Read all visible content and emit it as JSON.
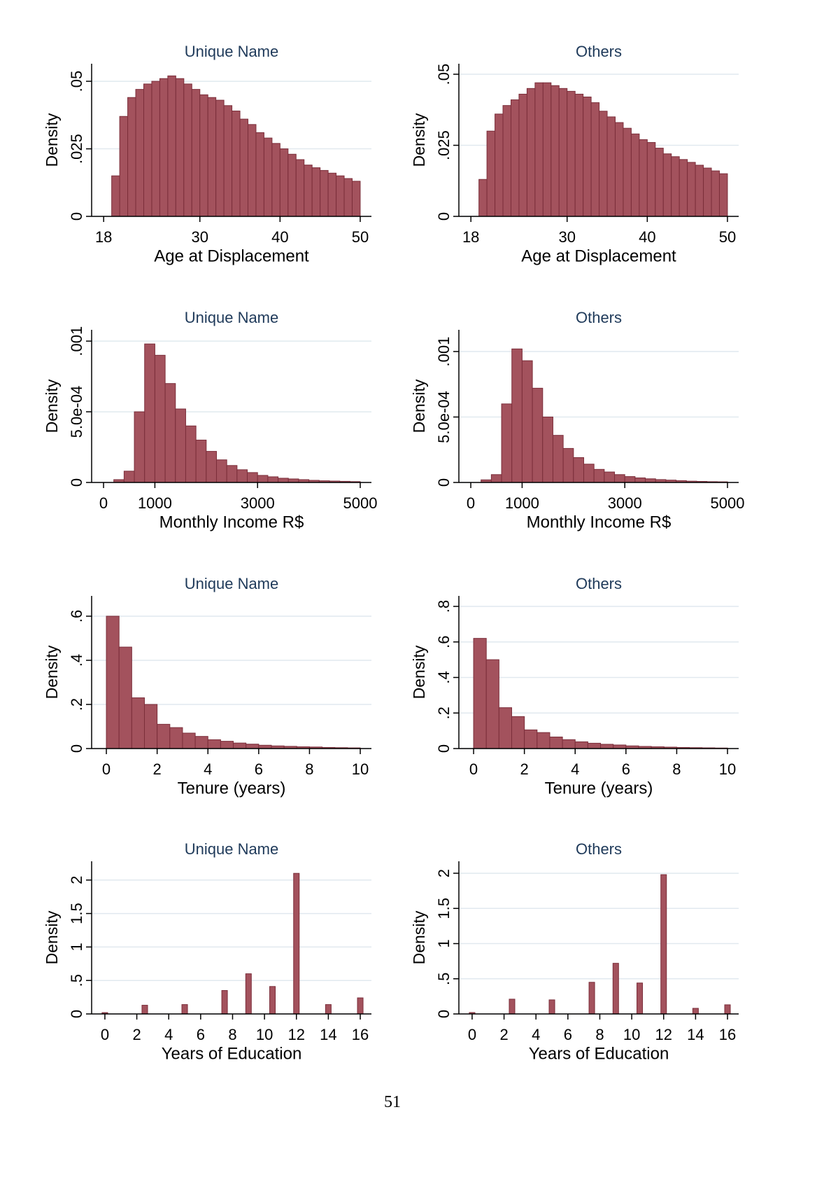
{
  "chart_data": [
    {
      "type": "histogram",
      "title": "Unique Name",
      "xlabel": "Age at Displacement",
      "ylabel": "Density",
      "color": "#a3525d",
      "bins": [
        19,
        20,
        21,
        22,
        23,
        24,
        25,
        26,
        27,
        28,
        29,
        30,
        31,
        32,
        33,
        34,
        35,
        36,
        37,
        38,
        39,
        40,
        41,
        42,
        43,
        44,
        45,
        46,
        47,
        48,
        49,
        50
      ],
      "values": [
        0.015,
        0.037,
        0.044,
        0.047,
        0.049,
        0.05,
        0.051,
        0.052,
        0.051,
        0.049,
        0.047,
        0.045,
        0.044,
        0.043,
        0.041,
        0.039,
        0.036,
        0.034,
        0.031,
        0.029,
        0.027,
        0.025,
        0.023,
        0.021,
        0.019,
        0.018,
        0.017,
        0.016,
        0.015,
        0.014,
        0.013
      ],
      "xlim": [
        16.5,
        51.4
      ],
      "xticks": [
        18,
        30,
        40,
        50
      ],
      "ylim": [
        0,
        0.0565
      ],
      "yticks": [
        0,
        {
          "value": 0.025,
          "label": ".025"
        },
        {
          "value": 0.05,
          "label": ".05"
        }
      ],
      "grid": true
    },
    {
      "type": "histogram",
      "title": "Others",
      "xlabel": "Age at Displacement",
      "ylabel": "Density",
      "color": "#a3525d",
      "bins": [
        19,
        20,
        21,
        22,
        23,
        24,
        25,
        26,
        27,
        28,
        29,
        30,
        31,
        32,
        33,
        34,
        35,
        36,
        37,
        38,
        39,
        40,
        41,
        42,
        43,
        44,
        45,
        46,
        47,
        48,
        49,
        50
      ],
      "values": [
        0.013,
        0.03,
        0.036,
        0.039,
        0.041,
        0.043,
        0.045,
        0.047,
        0.047,
        0.046,
        0.045,
        0.044,
        0.043,
        0.042,
        0.04,
        0.037,
        0.035,
        0.033,
        0.031,
        0.029,
        0.027,
        0.026,
        0.024,
        0.022,
        0.021,
        0.02,
        0.019,
        0.018,
        0.017,
        0.016,
        0.015
      ],
      "xlim": [
        16.5,
        51.4
      ],
      "xticks": [
        18,
        30,
        40,
        50
      ],
      "ylim": [
        0,
        0.0537
      ],
      "yticks": [
        0,
        {
          "value": 0.025,
          "label": ".025"
        },
        {
          "value": 0.05,
          "label": ".05"
        }
      ],
      "grid": true
    },
    {
      "type": "histogram",
      "title": "Unique Name",
      "xlabel": "Monthly Income R$",
      "ylabel": "Density",
      "color": "#a3525d",
      "bins": [
        200,
        400,
        600,
        800,
        1000,
        1200,
        1400,
        1600,
        1800,
        2000,
        2200,
        2400,
        2600,
        2800,
        3000,
        3200,
        3400,
        3600,
        3800,
        4000,
        4200,
        4400,
        4600,
        4800,
        5000
      ],
      "values": [
        2e-05,
        8e-05,
        0.0005,
        0.00098,
        0.0009,
        0.0007,
        0.00052,
        0.0004,
        0.0003,
        0.00022,
        0.00016,
        0.00012,
        9e-05,
        7e-05,
        5e-05,
        4e-05,
        3e-05,
        2.5e-05,
        2e-05,
        1.5e-05,
        1.2e-05,
        1e-05,
        8e-06,
        6e-06
      ],
      "xlim": [
        -232,
        5218
      ],
      "xticks": [
        0,
        1000,
        3000,
        5000
      ],
      "ylim": [
        0,
        0.00108
      ],
      "yticks": [
        0,
        {
          "value": 0.0005,
          "label": "5.0e-04"
        },
        {
          "value": 0.001,
          "label": ".001"
        }
      ],
      "grid": true
    },
    {
      "type": "histogram",
      "title": "Others",
      "xlabel": "Monthly Income R$",
      "ylabel": "Density",
      "color": "#a3525d",
      "bins": [
        200,
        400,
        600,
        800,
        1000,
        1200,
        1400,
        1600,
        1800,
        2000,
        2200,
        2400,
        2600,
        2800,
        3000,
        3200,
        3400,
        3600,
        3800,
        4000,
        4200,
        4400,
        4600,
        4800,
        5000
      ],
      "values": [
        2e-05,
        6e-05,
        0.0006,
        0.00102,
        0.00093,
        0.00072,
        0.0005,
        0.00036,
        0.00026,
        0.00019,
        0.00014,
        0.0001,
        8e-05,
        6e-05,
        4.5e-05,
        3.5e-05,
        2.8e-05,
        2.2e-05,
        1.8e-05,
        1.4e-05,
        1e-05,
        8e-06,
        6e-06,
        5e-06
      ],
      "xlim": [
        -232,
        5218
      ],
      "xticks": [
        0,
        1000,
        3000,
        5000
      ],
      "ylim": [
        0,
        0.001166
      ],
      "yticks": [
        0,
        {
          "value": 0.0005,
          "label": "5.0e-04"
        },
        {
          "value": 0.001,
          "label": ".001"
        }
      ],
      "grid": true
    },
    {
      "type": "histogram",
      "title": "Unique Name",
      "xlabel": "Tenure (years)",
      "ylabel": "Density",
      "color": "#a3525d",
      "bins": [
        0,
        0.5,
        1,
        1.5,
        2,
        2.5,
        3,
        3.5,
        4,
        4.5,
        5,
        5.5,
        6,
        6.5,
        7,
        7.5,
        8,
        8.5,
        9,
        9.5,
        10
      ],
      "values": [
        0.6,
        0.46,
        0.23,
        0.2,
        0.11,
        0.095,
        0.07,
        0.055,
        0.04,
        0.033,
        0.025,
        0.02,
        0.015,
        0.012,
        0.01,
        0.008,
        0.007,
        0.005,
        0.004,
        0.003
      ],
      "xlim": [
        -0.58,
        10.44
      ],
      "xticks": [
        0,
        2,
        4,
        6,
        8,
        10
      ],
      "ylim": [
        0,
        0.692
      ],
      "yticks": [
        0,
        {
          "value": 0.2,
          "label": ".2"
        },
        {
          "value": 0.4,
          "label": ".4"
        },
        {
          "value": 0.6,
          "label": ".6"
        }
      ],
      "grid": true
    },
    {
      "type": "histogram",
      "title": "Others",
      "xlabel": "Tenure (years)",
      "ylabel": "Density",
      "color": "#a3525d",
      "bins": [
        0,
        0.5,
        1,
        1.5,
        2,
        2.5,
        3,
        3.5,
        4,
        4.5,
        5,
        5.5,
        6,
        6.5,
        7,
        7.5,
        8,
        8.5,
        9,
        9.5,
        10
      ],
      "values": [
        0.62,
        0.5,
        0.23,
        0.18,
        0.105,
        0.09,
        0.065,
        0.05,
        0.038,
        0.03,
        0.024,
        0.02,
        0.015,
        0.012,
        0.01,
        0.008,
        0.006,
        0.005,
        0.004,
        0.003
      ],
      "xlim": [
        -0.58,
        10.44
      ],
      "xticks": [
        0,
        2,
        4,
        6,
        8,
        10
      ],
      "ylim": [
        0,
        0.859
      ],
      "yticks": [
        0,
        {
          "value": 0.2,
          "label": ".2"
        },
        {
          "value": 0.4,
          "label": ".4"
        },
        {
          "value": 0.6,
          "label": ".6"
        },
        {
          "value": 0.8,
          "label": ".8"
        }
      ],
      "grid": true
    },
    {
      "type": "bar",
      "title": "Unique Name",
      "xlabel": "Years of Education",
      "ylabel": "Density",
      "color": "#a3525d",
      "x": [
        0,
        2.5,
        5,
        7.5,
        9,
        10.5,
        12,
        14,
        16
      ],
      "values": [
        0.02,
        0.13,
        0.14,
        0.35,
        0.6,
        0.41,
        2.1,
        0.14,
        0.24
      ],
      "xlim": [
        -0.83,
        16.7
      ],
      "xticks": [
        0,
        2,
        4,
        6,
        8,
        10,
        12,
        14,
        16
      ],
      "ylim": [
        0,
        2.28
      ],
      "yticks": [
        0,
        {
          "value": 0.5,
          "label": ".5"
        },
        1,
        1.5,
        2
      ],
      "grid": true
    },
    {
      "type": "bar",
      "title": "Others",
      "xlabel": "Years of Education",
      "ylabel": "Density",
      "color": "#a3525d",
      "x": [
        0,
        2.5,
        5,
        7.5,
        9,
        10.5,
        12,
        14,
        16
      ],
      "values": [
        0.02,
        0.21,
        0.2,
        0.45,
        0.72,
        0.44,
        1.98,
        0.08,
        0.13
      ],
      "xlim": [
        -0.83,
        16.7
      ],
      "xticks": [
        0,
        2,
        4,
        6,
        8,
        10,
        12,
        14,
        16
      ],
      "ylim": [
        0,
        2.17
      ],
      "yticks": [
        0,
        {
          "value": 0.5,
          "label": ".5"
        },
        1,
        1.5,
        2
      ],
      "grid": true
    }
  ],
  "page_number": "51"
}
